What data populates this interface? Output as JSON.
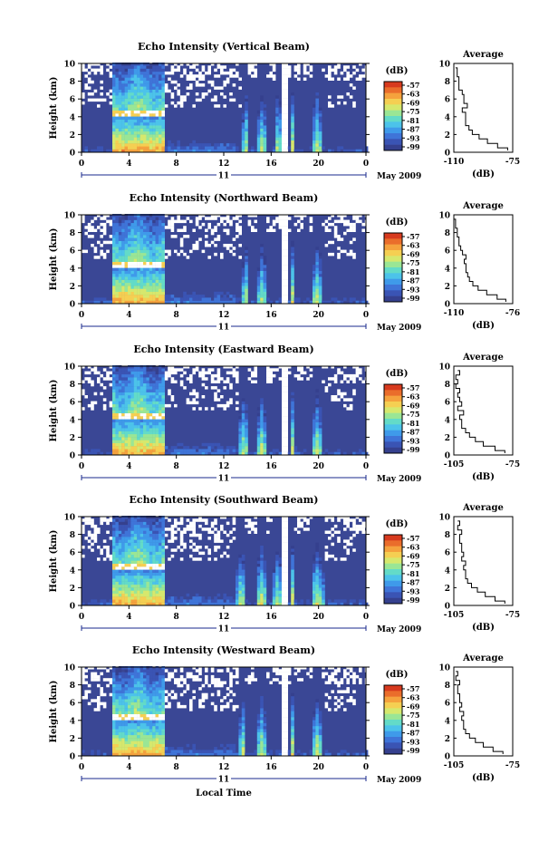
{
  "figure": {
    "date_label": "May 2009",
    "date_day": "11",
    "x_label": "Local Time",
    "y_label": "Height (km)",
    "colorbar_unit": "(dB)",
    "profile_title": "Average",
    "profile_xlabel": "(dB)"
  },
  "colors": {
    "background_fill": "#3a4795",
    "colormap": [
      "#35408e",
      "#3a54b4",
      "#3f74d8",
      "#3f9aea",
      "#4cc3ea",
      "#63dbc8",
      "#9ae695",
      "#d6e86d",
      "#f5cf52",
      "#f5a23d",
      "#ea6d2b",
      "#d73a1e"
    ],
    "axis_time_color": "#1a2a8c"
  },
  "chart_data": [
    {
      "type": "heatmap",
      "panel": "vertical",
      "title": "Echo Intensity (Vertical Beam)",
      "xlabel": "",
      "ylabel": "Height (km)",
      "xlim": [
        0,
        24
      ],
      "ylim": [
        0,
        10
      ],
      "xticks": [
        "0",
        "4",
        "8",
        "12",
        "16",
        "20",
        "0"
      ],
      "yticks": [
        "0",
        "2",
        "4",
        "6",
        "8",
        "10"
      ],
      "colorbar_ticks": [
        "-57",
        "-63",
        "-69",
        "-75",
        "-81",
        "-87",
        "-93",
        "-99"
      ],
      "rain_periods_h": [
        [
          2.5,
          7.0
        ],
        [
          13.6,
          14.1
        ],
        [
          14.9,
          15.6
        ],
        [
          16.3,
          16.9
        ],
        [
          17.6,
          18.0
        ],
        [
          19.5,
          20.3
        ]
      ],
      "melting_layer_km": 4.4,
      "data_gap_h": [
        17.0,
        17.4
      ],
      "profile": {
        "title": "Average",
        "xlabel": "(dB)",
        "xticks": [
          "-110",
          "-75"
        ],
        "xlim": [
          -110,
          -75
        ],
        "ylim": [
          0,
          10
        ],
        "height_km": [
          0.2,
          0.5,
          1,
          1.5,
          2,
          2.5,
          3,
          3.5,
          4,
          4.5,
          5,
          5.5,
          6,
          6.5,
          7,
          7.5,
          8,
          8.5,
          9,
          9.5
        ],
        "db": [
          -78,
          -84,
          -90,
          -95,
          -99,
          -101,
          -103,
          -103,
          -103,
          -105,
          -102,
          -104,
          -104,
          -105,
          -107,
          -107,
          -107,
          -108,
          -108,
          -109
        ]
      }
    },
    {
      "type": "heatmap",
      "panel": "northward",
      "title": "Echo Intensity (Northward Beam)",
      "xlabel": "",
      "ylabel": "Height (km)",
      "xlim": [
        0,
        24
      ],
      "ylim": [
        0,
        10
      ],
      "xticks": [
        "0",
        "4",
        "8",
        "12",
        "16",
        "20",
        "0"
      ],
      "yticks": [
        "0",
        "2",
        "4",
        "6",
        "8",
        "10"
      ],
      "colorbar_ticks": [
        "-57",
        "-63",
        "-69",
        "-75",
        "-81",
        "-87",
        "-93",
        "-99"
      ],
      "rain_periods_h": [
        [
          2.5,
          7.0
        ],
        [
          13.6,
          14.1
        ],
        [
          14.9,
          15.6
        ],
        [
          17.6,
          18.0
        ],
        [
          19.5,
          20.3
        ]
      ],
      "melting_layer_km": 4.4,
      "data_gap_h": [
        17.0,
        17.4
      ],
      "profile": {
        "title": "Average",
        "xlabel": "(dB)",
        "xticks": [
          "-110",
          "-76"
        ],
        "xlim": [
          -110,
          -76
        ],
        "ylim": [
          0,
          10
        ],
        "height_km": [
          0.2,
          0.5,
          1,
          1.5,
          2,
          2.5,
          3,
          3.5,
          4,
          4.5,
          5,
          5.5,
          6,
          6.5,
          7,
          7.5,
          8,
          8.5,
          9,
          9.5
        ],
        "db": [
          -80,
          -85,
          -91,
          -96,
          -99,
          -101,
          -102,
          -103,
          -103,
          -104,
          -103,
          -105,
          -106,
          -107,
          -107,
          -108,
          -108,
          -109,
          -109,
          -110
        ]
      }
    },
    {
      "type": "heatmap",
      "panel": "eastward",
      "title": "Echo Intensity (Eastward Beam)",
      "xlabel": "",
      "ylabel": "Height (km)",
      "xlim": [
        0,
        24
      ],
      "ylim": [
        0,
        10
      ],
      "xticks": [
        "0",
        "4",
        "8",
        "12",
        "16",
        "20",
        "0"
      ],
      "yticks": [
        "0",
        "2",
        "4",
        "6",
        "8",
        "10"
      ],
      "colorbar_ticks": [
        "-57",
        "-63",
        "-69",
        "-75",
        "-81",
        "-87",
        "-93",
        "-99"
      ],
      "rain_periods_h": [
        [
          2.5,
          7.0
        ],
        [
          13.3,
          14.1
        ],
        [
          14.8,
          15.6
        ],
        [
          17.6,
          18.0
        ],
        [
          19.5,
          20.3
        ]
      ],
      "melting_layer_km": 4.4,
      "data_gap_h": [
        17.0,
        17.4
      ],
      "profile": {
        "title": "Average",
        "xlabel": "(dB)",
        "xticks": [
          "-105",
          "-75"
        ],
        "xlim": [
          -105,
          -75
        ],
        "ylim": [
          0,
          10
        ],
        "height_km": [
          0.2,
          0.5,
          1,
          1.5,
          2,
          2.5,
          3,
          3.5,
          4,
          4.5,
          5,
          5.5,
          6,
          6.5,
          7,
          7.5,
          8,
          8.5,
          9,
          9.5
        ],
        "db": [
          -79,
          -84,
          -90,
          -94,
          -97,
          -99,
          -101,
          -101,
          -102,
          -100,
          -103,
          -101,
          -102,
          -103,
          -102,
          -104,
          -103,
          -104,
          -102,
          -103
        ]
      }
    },
    {
      "type": "heatmap",
      "panel": "southward",
      "title": "Echo Intensity (Southward Beam)",
      "xlabel": "",
      "ylabel": "Height (km)",
      "xlim": [
        0,
        24
      ],
      "ylim": [
        0,
        10
      ],
      "xticks": [
        "0",
        "4",
        "8",
        "12",
        "16",
        "20",
        "0"
      ],
      "yticks": [
        "0",
        "2",
        "4",
        "6",
        "8",
        "10"
      ],
      "colorbar_ticks": [
        "-57",
        "-63",
        "-69",
        "-75",
        "-81",
        "-87",
        "-93",
        "-99"
      ],
      "rain_periods_h": [
        [
          2.5,
          7.0
        ],
        [
          13.1,
          13.9
        ],
        [
          14.7,
          15.7
        ],
        [
          16.2,
          16.9
        ],
        [
          17.6,
          18.0
        ],
        [
          19.4,
          20.4
        ]
      ],
      "melting_layer_km": 4.4,
      "data_gap_h": [
        17.0,
        17.4
      ],
      "profile": {
        "title": "Average",
        "xlabel": "(dB)",
        "xticks": [
          "-105",
          "-75"
        ],
        "xlim": [
          -105,
          -75
        ],
        "ylim": [
          0,
          10
        ],
        "height_km": [
          0.2,
          0.5,
          1,
          1.5,
          2,
          2.5,
          3,
          3.5,
          4,
          4.5,
          5,
          5.5,
          6,
          6.5,
          7,
          7.5,
          8,
          8.5,
          9,
          9.5
        ],
        "db": [
          -79,
          -84,
          -89,
          -93,
          -96,
          -98,
          -99,
          -99,
          -100,
          -99,
          -101,
          -100,
          -101,
          -101,
          -102,
          -102,
          -101,
          -103,
          -102,
          -103
        ]
      }
    },
    {
      "type": "heatmap",
      "panel": "westward",
      "title": "Echo Intensity (Westward Beam)",
      "xlabel": "Local Time",
      "ylabel": "Height (km)",
      "xlim": [
        0,
        24
      ],
      "ylim": [
        0,
        10
      ],
      "xticks": [
        "0",
        "4",
        "8",
        "12",
        "16",
        "20",
        "0"
      ],
      "yticks": [
        "0",
        "2",
        "4",
        "6",
        "8",
        "10"
      ],
      "colorbar_ticks": [
        "-57",
        "-63",
        "-69",
        "-75",
        "-81",
        "-87",
        "-93",
        "-99"
      ],
      "rain_periods_h": [
        [
          2.5,
          7.0
        ],
        [
          13.3,
          13.9
        ],
        [
          14.8,
          15.6
        ],
        [
          17.6,
          18.0
        ],
        [
          19.5,
          20.3
        ]
      ],
      "melting_layer_km": 4.4,
      "data_gap_h": [
        17.0,
        17.4
      ],
      "profile": {
        "title": "Average",
        "xlabel": "(dB)",
        "xticks": [
          "-105",
          "-75"
        ],
        "xlim": [
          -105,
          -75
        ],
        "ylim": [
          0,
          10
        ],
        "height_km": [
          0.2,
          0.5,
          1,
          1.5,
          2,
          2.5,
          3,
          3.5,
          4,
          4.5,
          5,
          5.5,
          6,
          6.5,
          7,
          7.5,
          8,
          8.5,
          9,
          9.5
        ],
        "db": [
          -80,
          -85,
          -90,
          -94,
          -97,
          -99,
          -100,
          -100,
          -101,
          -100,
          -102,
          -101,
          -102,
          -102,
          -103,
          -103,
          -102,
          -104,
          -103,
          -104
        ]
      }
    }
  ]
}
